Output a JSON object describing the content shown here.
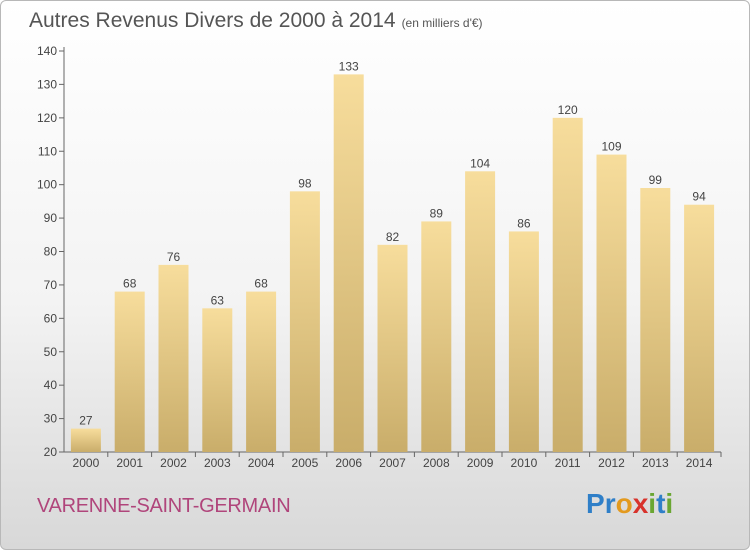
{
  "header": {
    "title": "Autres Revenus Divers de 2000 à 2014",
    "subtitle": "(en milliers d'€)"
  },
  "footer": {
    "commune": "VARENNE-SAINT-GERMAIN",
    "logo_letters": [
      {
        "ch": "P",
        "color": "#2f7fc8"
      },
      {
        "ch": "r",
        "color": "#2f7fc8"
      },
      {
        "ch": "o",
        "color": "#e39a1f"
      },
      {
        "ch": "x",
        "color": "#d8332c"
      },
      {
        "ch": "i",
        "color": "#6aa632"
      },
      {
        "ch": "t",
        "color": "#2f7fc8"
      },
      {
        "ch": "i",
        "color": "#6aa632"
      }
    ]
  },
  "colors": {
    "bar_top": "#f7dd9c",
    "bar_bottom": "#c9ad6a",
    "axis": "#666666",
    "label": "#444444",
    "commune": "#b0457b"
  },
  "chart_data": {
    "type": "bar",
    "categories": [
      "2000",
      "2001",
      "2002",
      "2003",
      "2004",
      "2005",
      "2006",
      "2007",
      "2008",
      "2009",
      "2010",
      "2011",
      "2012",
      "2013",
      "2014"
    ],
    "values": [
      27,
      68,
      76,
      63,
      68,
      98,
      133,
      82,
      89,
      104,
      86,
      120,
      109,
      99,
      94
    ],
    "title": "Autres Revenus Divers de 2000 à 2014",
    "ylim": [
      20,
      140
    ],
    "yticks": [
      20,
      30,
      40,
      50,
      60,
      70,
      80,
      90,
      100,
      110,
      120,
      130,
      140
    ],
    "grid": false,
    "data_labels": true
  }
}
